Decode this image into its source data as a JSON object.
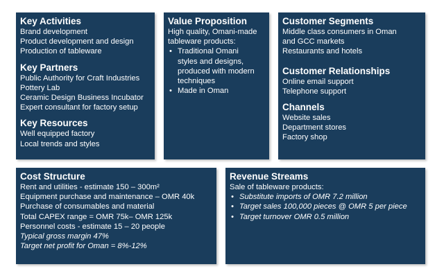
{
  "key_activities": {
    "title": "Key Activities",
    "items": [
      "Brand development",
      "Product development and design",
      "Production of tableware"
    ]
  },
  "key_partners": {
    "title": "Key Partners",
    "items": [
      "Public Authority for Craft Industries",
      "Pottery Lab",
      "Ceramic Design Business Incubator",
      "Expert consultant for factory setup"
    ]
  },
  "key_resources": {
    "title": "Key Resources",
    "items": [
      "Well equipped factory",
      "Local trends and styles"
    ]
  },
  "value_proposition": {
    "title": "Value Proposition",
    "intro": [
      "High quality, Omani-made",
      "tableware products:"
    ],
    "bullet_1": [
      "Traditional Omani",
      "styles and designs,",
      "produced with modern",
      "techniques"
    ],
    "bullet_2": "Made in Oman"
  },
  "customer_segments": {
    "title": "Customer Segments",
    "items": [
      "Middle class consumers in Oman",
      "and GCC markets",
      "Restaurants and hotels"
    ]
  },
  "customer_relationships": {
    "title": "Customer Relationships",
    "items": [
      "Online email support",
      "Telephone support"
    ]
  },
  "channels": {
    "title": "Channels",
    "items": [
      "Website sales",
      "Department stores",
      "Factory shop"
    ]
  },
  "cost_structure": {
    "title": "Cost Structure",
    "items": [
      "Rent and utilities - estimate 150 – 300m²",
      "Equipment purchase and maintenance – OMR 40k",
      "Purchase of consumables and material",
      "Total CAPEX range = OMR 75k– OMR 125k",
      "Personnel costs - estimate 15 – 20 people"
    ],
    "italic_items": [
      "Typical gross margin 47%",
      "Target net profit for Oman = 8%-12%"
    ]
  },
  "revenue_streams": {
    "title": "Revenue Streams",
    "intro": "Sale of tableware products:",
    "bullets": [
      "Substitute imports of OMR 7.2 million",
      "Target sales 100,000 pieces @ OMR 5 per piece",
      "Target turnover OMR 0.5 million"
    ]
  },
  "colors": {
    "box_background": "#1a3d5c",
    "text": "#ffffff"
  }
}
